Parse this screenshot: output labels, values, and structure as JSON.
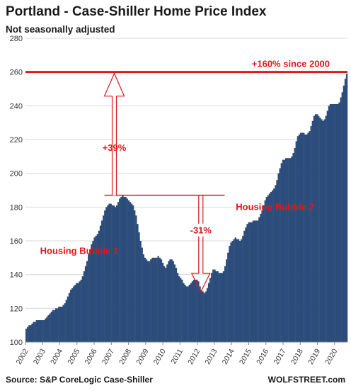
{
  "colors": {
    "bar": "#2c4d7b",
    "accent": "#e0161d",
    "grid": "#d9d9d9",
    "axis_text": "#333333",
    "title_text": "#1a1a1a"
  },
  "footer": {
    "source": "Source: S&P CoreLogic Case-Shiller",
    "brand": "WOLFSTREET.com"
  },
  "chart_data": {
    "type": "area",
    "title": "Portland - Case-Shiller Home Price Index",
    "subtitle": "Not seasonally adjusted",
    "xlabel": "",
    "ylabel": "",
    "ylim": [
      100,
      280
    ],
    "xlim": [
      2002.0,
      2020.75
    ],
    "y_ticks": [
      100,
      120,
      140,
      160,
      180,
      200,
      220,
      240,
      260,
      280
    ],
    "x_ticks": [
      "2002",
      "2003",
      "2004",
      "2005",
      "2006",
      "2007",
      "2008",
      "2009",
      "2010",
      "2011",
      "2012",
      "2013",
      "2014",
      "2015",
      "2016",
      "2017",
      "2018",
      "2019",
      "2020"
    ],
    "grid": true,
    "legend": "none",
    "frequency": "monthly",
    "start": "2002-01",
    "series": [
      {
        "values": [
          108,
          109,
          110,
          110,
          111,
          112,
          112,
          113,
          113,
          113,
          113,
          113,
          113,
          114,
          115,
          116,
          117,
          118,
          119,
          119,
          120,
          120,
          121,
          121,
          121,
          122,
          123,
          125,
          127,
          129,
          131,
          132,
          133,
          134,
          135,
          135,
          136,
          137,
          139,
          142,
          145,
          148,
          152,
          155,
          158,
          160,
          162,
          163,
          164,
          166,
          169,
          172,
          175,
          178,
          180,
          181,
          182,
          182,
          181,
          181,
          180,
          181,
          183,
          185,
          186,
          187,
          186,
          186,
          185,
          184,
          183,
          182,
          181,
          178,
          175,
          170,
          165,
          160,
          156,
          152,
          150,
          149,
          148,
          148,
          149,
          150,
          150,
          150,
          150,
          151,
          150,
          149,
          147,
          145,
          144,
          146,
          148,
          149,
          149,
          148,
          146,
          144,
          141,
          139,
          138,
          137,
          135,
          134,
          133,
          133,
          134,
          135,
          136,
          137,
          137,
          137,
          136,
          133,
          131,
          130,
          129,
          130,
          132,
          135,
          138,
          141,
          143,
          143,
          142,
          142,
          141,
          141,
          141,
          142,
          145,
          149,
          153,
          157,
          159,
          160,
          161,
          162,
          161,
          161,
          160,
          161,
          163,
          166,
          168,
          170,
          171,
          171,
          171,
          172,
          172,
          172,
          172,
          174,
          176,
          178,
          181,
          184,
          186,
          187,
          188,
          189,
          190,
          191,
          193,
          196,
          200,
          203,
          206,
          208,
          208,
          209,
          209,
          209,
          209,
          210,
          212,
          215,
          219,
          222,
          223,
          224,
          224,
          224,
          223,
          223,
          224,
          225,
          228,
          231,
          234,
          235,
          235,
          234,
          233,
          232,
          231,
          232,
          234,
          237,
          240,
          241,
          241,
          241,
          241,
          241,
          241,
          242,
          245,
          248,
          252,
          256,
          259
        ]
      }
    ],
    "reference_line": {
      "value": 260,
      "label": "+160% since 2000"
    },
    "annotations": [
      {
        "text": "+39%"
      },
      {
        "text": "-31%"
      },
      {
        "text": "Housing Bubble 1"
      },
      {
        "text": "Housing Bubble 2"
      }
    ],
    "markers": {
      "peak1": {
        "x": 2007.42,
        "y": 187
      },
      "trough": {
        "x": 2012.17,
        "y": 129
      },
      "top": {
        "x": 2020.75,
        "y": 260
      }
    }
  }
}
